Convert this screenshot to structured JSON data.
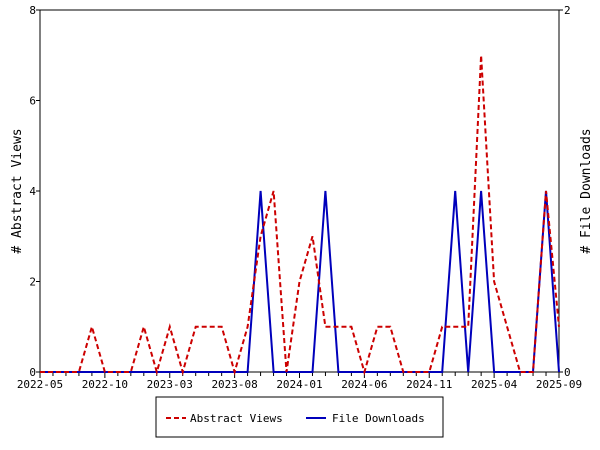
{
  "chart_data": {
    "type": "line",
    "title": "",
    "xlabel": "",
    "ylabel": "# Abstract Views",
    "ylabel_right": "# File Downloads",
    "x_start": "2022-05",
    "x_tick_labels": [
      "2022-05",
      "2022-10",
      "2023-03",
      "2023-08",
      "2024-01",
      "2024-06",
      "2024-11",
      "2025-04",
      "2025-09"
    ],
    "y_ticks_left": [
      "0",
      "2",
      "4",
      "6",
      "8"
    ],
    "y_ticks_right": [
      "0",
      "2"
    ],
    "ylim": [
      0,
      8
    ],
    "ylim_right": [
      0,
      2
    ],
    "legend_position": "bottom",
    "series": [
      {
        "name": "Abstract Views",
        "axis": "left",
        "color": "#cc0000",
        "style": "dashed",
        "values": [
          0,
          0,
          0,
          0,
          1,
          0,
          0,
          0,
          1,
          0,
          1,
          0,
          1,
          1,
          1,
          0,
          1,
          3,
          4,
          0,
          2,
          3,
          1,
          1,
          1,
          0,
          1,
          1,
          0,
          0,
          0,
          1,
          1,
          1,
          7,
          2,
          1,
          0,
          0,
          4,
          1
        ]
      },
      {
        "name": "File Downloads",
        "axis": "right",
        "color": "#0000bb",
        "style": "solid",
        "values": [
          0,
          0,
          0,
          0,
          0,
          0,
          0,
          0,
          0,
          0,
          0,
          0,
          0,
          0,
          0,
          0,
          0,
          1,
          0,
          0,
          0,
          0,
          1,
          0,
          0,
          0,
          0,
          0,
          0,
          0,
          0,
          0,
          1,
          0,
          1,
          0,
          0,
          0,
          0,
          1,
          0
        ]
      }
    ]
  }
}
